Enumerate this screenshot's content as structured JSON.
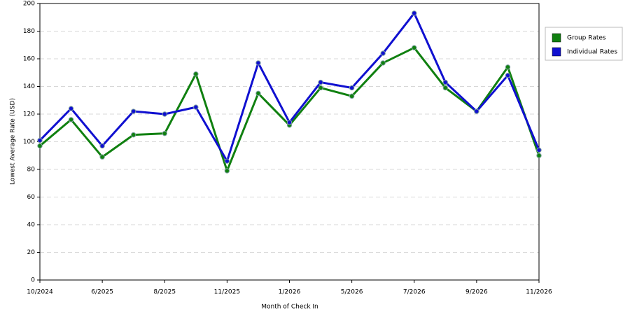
{
  "chart_data": {
    "type": "line",
    "x_label": "Month of Check In",
    "y_label": "Lowest Average Rate (USD)",
    "categories": [
      "10/2024",
      null,
      "6/2025",
      null,
      "8/2025",
      null,
      "11/2025",
      null,
      "1/2026",
      null,
      "5/2026",
      null,
      "7/2026",
      null,
      "9/2026",
      null,
      "11/2026"
    ],
    "series": [
      {
        "name": "Group Rates",
        "color": "#108010",
        "values": [
          97,
          116,
          89,
          105,
          106,
          149,
          79,
          135,
          112,
          139,
          133,
          157,
          168,
          139,
          122,
          154,
          90
        ]
      },
      {
        "name": "Individual Rates",
        "color": "#1010d0",
        "values": [
          101,
          124,
          97,
          122,
          120,
          125,
          86,
          157,
          114,
          143,
          139,
          164,
          193,
          143,
          122,
          148,
          94
        ]
      }
    ],
    "ylim": [
      0,
      200
    ],
    "yticks": [
      0,
      20,
      40,
      60,
      80,
      100,
      120,
      140,
      160,
      180,
      200
    ],
    "grid": true,
    "legend": "right"
  }
}
